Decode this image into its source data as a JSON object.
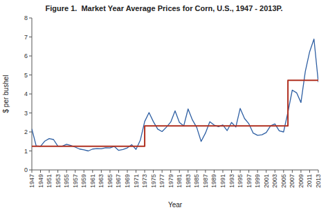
{
  "chart_data": {
    "type": "line",
    "title": "Figure 1.  Market Year Average Prices for Corn, U.S., 1947 - 2013P.",
    "xlabel": "Year",
    "ylabel": "$ per bushel",
    "x": [
      1947,
      1948,
      1949,
      1950,
      1951,
      1952,
      1953,
      1954,
      1955,
      1956,
      1957,
      1958,
      1959,
      1960,
      1961,
      1962,
      1963,
      1964,
      1965,
      1966,
      1967,
      1968,
      1969,
      1970,
      1971,
      1972,
      1973,
      1974,
      1975,
      1976,
      1977,
      1978,
      1979,
      1980,
      1981,
      1982,
      1983,
      1984,
      1985,
      1986,
      1987,
      1988,
      1989,
      1990,
      1991,
      1992,
      1993,
      1994,
      1995,
      1996,
      1997,
      1998,
      1999,
      2000,
      2001,
      2002,
      2003,
      2004,
      2005,
      2006,
      2007,
      2008,
      2009,
      2010,
      2011,
      2012,
      2013
    ],
    "series": [
      {
        "color": "#2E5FA3",
        "values": [
          2.16,
          1.27,
          1.24,
          1.52,
          1.65,
          1.6,
          1.25,
          1.25,
          1.35,
          1.29,
          1.2,
          1.1,
          1.06,
          1.0,
          1.1,
          1.12,
          1.11,
          1.17,
          1.16,
          1.24,
          1.03,
          1.08,
          1.16,
          1.33,
          1.08,
          1.57,
          2.55,
          3.02,
          2.54,
          2.15,
          2.02,
          2.25,
          2.52,
          3.11,
          2.5,
          2.32,
          3.21,
          2.63,
          2.23,
          1.5,
          1.94,
          2.54,
          2.36,
          2.28,
          2.37,
          2.07,
          2.5,
          2.26,
          3.24,
          2.71,
          2.43,
          1.94,
          1.82,
          1.85,
          1.97,
          2.32,
          2.42,
          2.06,
          2.0,
          3.04,
          4.2,
          4.06,
          3.55,
          5.18,
          6.22,
          6.89,
          4.62
        ]
      },
      {
        "color": "#B03020",
        "x": [
          1947,
          1973,
          1973,
          2006,
          2006,
          2013
        ],
        "values": [
          1.25,
          1.25,
          2.32,
          2.32,
          4.72,
          4.72
        ]
      }
    ],
    "xlim": [
      1947,
      2013
    ],
    "xticks": [
      1947,
      1949,
      1951,
      1953,
      1955,
      1957,
      1959,
      1961,
      1963,
      1965,
      1967,
      1969,
      1971,
      1973,
      1975,
      1977,
      1979,
      1981,
      1983,
      1985,
      1987,
      1989,
      1991,
      1993,
      1995,
      1997,
      1999,
      2001,
      2003,
      2005,
      2007,
      2009,
      2011,
      2013
    ],
    "ylim": [
      0,
      8
    ],
    "yticks": [
      0,
      1,
      2,
      3,
      4,
      5,
      6,
      7,
      8
    ],
    "grid": false
  }
}
